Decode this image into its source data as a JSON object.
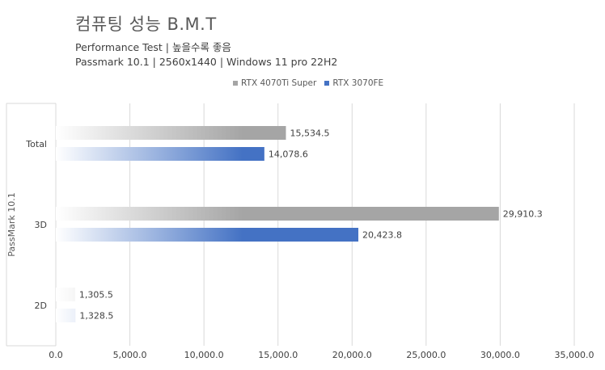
{
  "chart_data": {
    "type": "bar",
    "orientation": "horizontal",
    "title": "컴퓨팅 성능 B.M.T",
    "subtitle_lines": [
      "Performance Test | 높을수록 좋음",
      "Passmark 10.1 | 2560x1440 | Windows 11 pro 22H2"
    ],
    "ylabel": "PassMark 10.1",
    "xlabel": "",
    "categories": [
      "Total",
      "3D",
      "2D"
    ],
    "series": [
      {
        "name": "RTX 4070Ti Super",
        "color": "#a5a5a5",
        "values": [
          15534.5,
          29910.3,
          1305.5
        ],
        "labels": [
          "15,534.5",
          "29,910.3",
          "1,305.5"
        ]
      },
      {
        "name": "RTX 3070FE",
        "color": "#4472c4",
        "values": [
          14078.6,
          20423.8,
          1328.5
        ],
        "labels": [
          "14,078.6",
          "20,423.8",
          "1,328.5"
        ]
      }
    ],
    "xlim": [
      0,
      35000
    ],
    "xticks": [
      0,
      5000,
      10000,
      15000,
      20000,
      25000,
      30000,
      35000
    ],
    "xtick_labels": [
      "0.0",
      "5,000.0",
      "10,000.0",
      "15,000.0",
      "20,000.0",
      "25,000.0",
      "30,000.0",
      "35,000.0"
    ],
    "grid": true,
    "legend_position": "top"
  }
}
